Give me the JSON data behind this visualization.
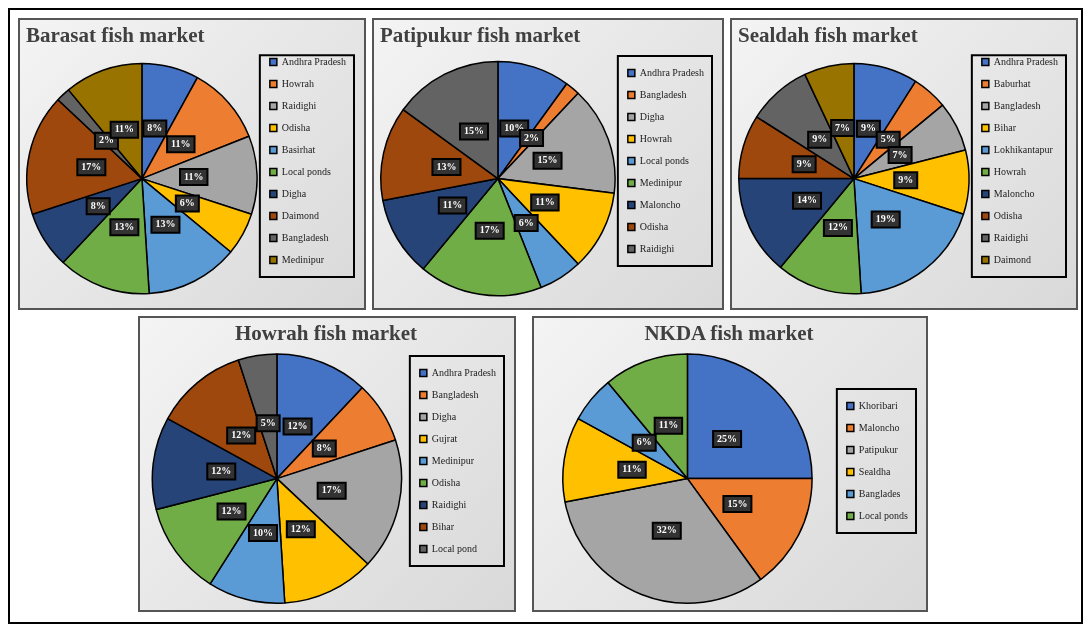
{
  "chart_data": [
    {
      "type": "pie",
      "title": "Barasat fish market",
      "categories": [
        "Andhra Pradesh",
        "Howrah",
        "Raidighi",
        "Odisha",
        "Basirhat",
        "Local ponds",
        "Digha",
        "Daimond",
        "Bangladesh",
        "Medinipur"
      ],
      "values": [
        8,
        11,
        11,
        6,
        13,
        13,
        8,
        17,
        2,
        11
      ],
      "value_labels": [
        "8%",
        "11%",
        "11%",
        "6%",
        "13%",
        "13%",
        "8%",
        "17%",
        "2%",
        "11%"
      ],
      "colors": [
        "#4472c4",
        "#ed7d31",
        "#a5a5a5",
        "#ffc000",
        "#5b9bd5",
        "#70ad47",
        "#264478",
        "#9e480e",
        "#636363",
        "#997300"
      ],
      "legend": "right"
    },
    {
      "type": "pie",
      "title": "Patipukur fish market",
      "categories": [
        "Andhra Pradesh",
        "Bangladesh",
        "Digha",
        "Howrah",
        "Local ponds",
        "Medinipur",
        "Maloncho",
        "Odisha",
        "Raidighi"
      ],
      "values": [
        10,
        2,
        15,
        11,
        6,
        17,
        11,
        13,
        15
      ],
      "value_labels": [
        "10%",
        "2%",
        "15%",
        "11%",
        "6%",
        "17%",
        "11%",
        "13%",
        "15%"
      ],
      "colors": [
        "#4472c4",
        "#ed7d31",
        "#a5a5a5",
        "#ffc000",
        "#5b9bd5",
        "#70ad47",
        "#264478",
        "#9e480e",
        "#636363"
      ],
      "legend": "right"
    },
    {
      "type": "pie",
      "title": "Sealdah fish market",
      "categories": [
        "Andhra Pradesh",
        "Baburhat",
        "Bangladesh",
        "Bihar",
        "Lokhikantapur",
        "Howrah",
        "Maloncho",
        "Odisha",
        "Raidighi",
        "Daimond"
      ],
      "values": [
        9,
        5,
        7,
        9,
        19,
        12,
        14,
        9,
        9,
        7
      ],
      "value_labels": [
        "9%",
        "5%",
        "7%",
        "9%",
        "19%",
        "12%",
        "14%",
        "9%",
        "9%",
        "7%"
      ],
      "colors": [
        "#4472c4",
        "#ed7d31",
        "#a5a5a5",
        "#ffc000",
        "#5b9bd5",
        "#70ad47",
        "#264478",
        "#9e480e",
        "#636363",
        "#997300"
      ],
      "legend": "right"
    },
    {
      "type": "pie",
      "title": "Howrah fish market",
      "categories": [
        "Andhra Pradesh",
        "Bangladesh",
        "Digha",
        "Gujrat",
        "Medinipur",
        "Odisha",
        "Raidighi",
        "Bihar",
        "Local pond"
      ],
      "values": [
        12,
        8,
        17,
        12,
        10,
        12,
        12,
        12,
        5
      ],
      "value_labels": [
        "12%",
        "8%",
        "17%",
        "12%",
        "10%",
        "12%",
        "12%",
        "12%",
        "5%"
      ],
      "colors": [
        "#4472c4",
        "#ed7d31",
        "#a5a5a5",
        "#ffc000",
        "#5b9bd5",
        "#70ad47",
        "#264478",
        "#9e480e",
        "#636363"
      ],
      "legend": "right"
    },
    {
      "type": "pie",
      "title": "NKDA fish market",
      "categories": [
        "Khoribari",
        "Maloncho",
        "Patipukur",
        "Sealdha",
        "Banglades",
        "Local ponds"
      ],
      "values": [
        25,
        15,
        32,
        11,
        6,
        11
      ],
      "value_labels": [
        "25%",
        "15%",
        "32%",
        "11%",
        "6%",
        "11%"
      ],
      "colors": [
        "#4472c4",
        "#ed7d31",
        "#a5a5a5",
        "#ffc000",
        "#5b9bd5",
        "#70ad47"
      ],
      "legend": "right"
    }
  ]
}
